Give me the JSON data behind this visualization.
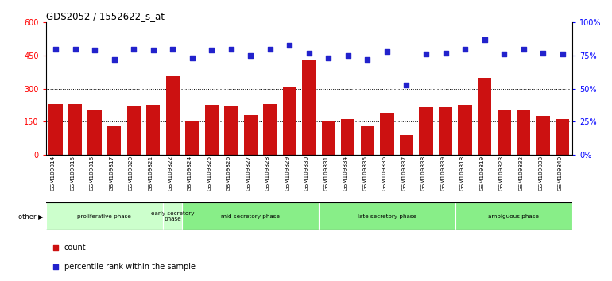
{
  "title": "GDS2052 / 1552622_s_at",
  "samples": [
    "GSM109814",
    "GSM109815",
    "GSM109816",
    "GSM109817",
    "GSM109820",
    "GSM109821",
    "GSM109822",
    "GSM109824",
    "GSM109825",
    "GSM109826",
    "GSM109827",
    "GSM109828",
    "GSM109829",
    "GSM109830",
    "GSM109831",
    "GSM109834",
    "GSM109835",
    "GSM109836",
    "GSM109837",
    "GSM109838",
    "GSM109839",
    "GSM109818",
    "GSM109819",
    "GSM109823",
    "GSM109832",
    "GSM109833",
    "GSM109840"
  ],
  "counts": [
    230,
    230,
    200,
    130,
    220,
    225,
    355,
    155,
    225,
    220,
    180,
    230,
    305,
    430,
    155,
    160,
    130,
    190,
    90,
    215,
    215,
    225,
    350,
    205,
    205,
    175,
    160
  ],
  "percentiles": [
    80,
    80,
    79,
    72,
    80,
    79,
    80,
    73,
    79,
    80,
    75,
    80,
    83,
    77,
    73,
    75,
    72,
    78,
    53,
    76,
    77,
    80,
    87,
    76,
    80,
    77,
    76
  ],
  "phases": [
    {
      "label": "proliferative phase",
      "start": 0,
      "end": 6,
      "color": "#ccffcc"
    },
    {
      "label": "early secretory\nphase",
      "start": 6,
      "end": 7,
      "color": "#ccffcc"
    },
    {
      "label": "mid secretory phase",
      "start": 7,
      "end": 14,
      "color": "#88ee88"
    },
    {
      "label": "late secretory phase",
      "start": 14,
      "end": 21,
      "color": "#88ee88"
    },
    {
      "label": "ambiguous phase",
      "start": 21,
      "end": 27,
      "color": "#88ee88"
    }
  ],
  "bar_color": "#cc1111",
  "dot_color": "#2222cc",
  "ylim_left": [
    0,
    600
  ],
  "ylim_right": [
    0,
    100
  ],
  "yticks_left": [
    0,
    150,
    300,
    450,
    600
  ],
  "yticks_right": [
    0,
    25,
    50,
    75,
    100
  ],
  "plot_bg": "#ffffff",
  "grid_lines": [
    150,
    300,
    450
  ]
}
